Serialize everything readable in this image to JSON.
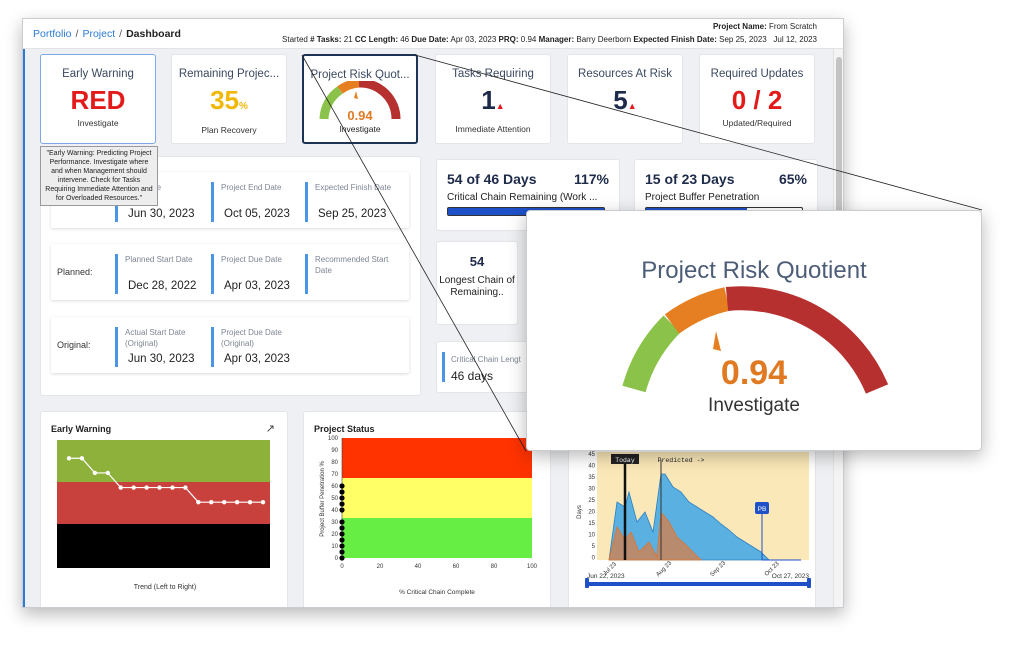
{
  "breadcrumb": {
    "portfolio": "Portfolio",
    "project": "Project",
    "current": "Dashboard",
    "sep": "/"
  },
  "header": {
    "project_name_label": "Project Name:",
    "project_name": "From Scratch",
    "started_label": "Started",
    "tasks_label": "# Tasks:",
    "tasks": "21",
    "cc_length_label": "CC Length:",
    "cc_length": "46",
    "due_date_label": "Due Date:",
    "due_date": "Apr 03, 2023",
    "prq_label": "PRQ:",
    "prq": "0.94",
    "manager_label": "Manager:",
    "manager": "Barry Deerborn",
    "expected_finish_label": "Expected Finish Date:",
    "expected_finish": "Sep 25, 2023",
    "today": "Jul 12, 2023"
  },
  "kpis": {
    "early_warning": {
      "title": "Early Warning",
      "value": "RED",
      "sub": "Investigate"
    },
    "remaining": {
      "title": "Remaining Projec...",
      "value": "35",
      "unit": "%",
      "sub": "Plan Recovery"
    },
    "risk_quotient": {
      "title": "Project Risk Quot...",
      "value": "0.94",
      "sub": "Investigate"
    },
    "tasks_requiring": {
      "title": "Tasks Requiring",
      "value": "1",
      "sub": "Immediate Attention"
    },
    "resources_at_risk": {
      "title": "Resources At Risk",
      "value": "5",
      "sub": ""
    },
    "required_updates": {
      "title": "Required Updates",
      "value": "0 / 2",
      "sub": "Updated/Required"
    }
  },
  "tooltip": "\"Early Warning: Predicting Project Performance. Investigate where and when Management should intervene. Check for Tasks Requiring Immediate Attention and for Overloaded Resources.\"",
  "dates": {
    "current": {
      "label": "",
      "c1_label": "Start Date",
      "c1_value": "Jun 30, 2023",
      "c2_label": "Project End Date",
      "c2_value": "Oct 05, 2023",
      "c3_label": "Expected Finish Date",
      "c3_value": "Sep 25, 2023"
    },
    "planned": {
      "label": "Planned:",
      "c1_label": "Planned Start Date",
      "c1_value": "Dec 28, 2022",
      "c2_label": "Project Due Date",
      "c2_value": "Apr 03, 2023",
      "c3_label": "Recommended Start Date",
      "c3_value": ""
    },
    "original": {
      "label": "Original:",
      "c1_label": "Actual Start Date (Original)",
      "c1_value": "Jun 30, 2023",
      "c2_label": "Project Due Date (Original)",
      "c2_value": "Apr 03, 2023"
    }
  },
  "critical_chain": {
    "head": "54 of 46 Days",
    "pct": "117%",
    "desc": "Critical Chain Remaining (Work ...",
    "fill": 1.0
  },
  "buffer": {
    "head": "15 of 23 Days",
    "pct": "65%",
    "desc": "Project Buffer Penetration",
    "fill": 0.65
  },
  "longest_chain": {
    "value": "54",
    "label": "Longest Chain of Remaining.."
  },
  "ccl": {
    "label": "Critical Chain Lengt",
    "value": "46 days"
  },
  "charts": {
    "early_warning": {
      "title": "Early Warning",
      "xlabel": "Trend (Left to Right)",
      "levels": [
        3,
        3,
        2.6,
        2.6,
        2.2,
        2.2,
        2.2,
        2.2,
        2.2,
        2.2,
        1.8,
        1.8,
        1.8,
        1.8,
        1.8,
        1.8
      ]
    },
    "project_status": {
      "title": "Project Status",
      "xlabel": "% Critical Chain Complete",
      "ylabel": "Project Buffer Penetration %",
      "yticks": [
        "100",
        "90",
        "80",
        "70",
        "60",
        "50",
        "40",
        "30",
        "20",
        "10",
        "0"
      ],
      "xticks": [
        "0",
        "20",
        "40",
        "60",
        "80",
        "100"
      ],
      "points_y": [
        0,
        5,
        10,
        15,
        20,
        25,
        30,
        40,
        45,
        50,
        55,
        60
      ]
    },
    "fever": {
      "ylabel": "Days",
      "today_label": "Today",
      "predicted_label": "Predicted ->",
      "pb_label": "PB",
      "range_start": "Jun 22, 2023",
      "range_end": "Oct 27, 2023",
      "xticks": [
        "Jul 23",
        "Aug 23",
        "Sep 23",
        "Oct 23"
      ],
      "yticks": [
        "45",
        "40",
        "35",
        "30",
        "25",
        "20",
        "15",
        "10",
        "5",
        "0"
      ]
    }
  },
  "zoom": {
    "title": "Project Risk Quotient",
    "value": "0.94",
    "label": "Investigate"
  }
}
